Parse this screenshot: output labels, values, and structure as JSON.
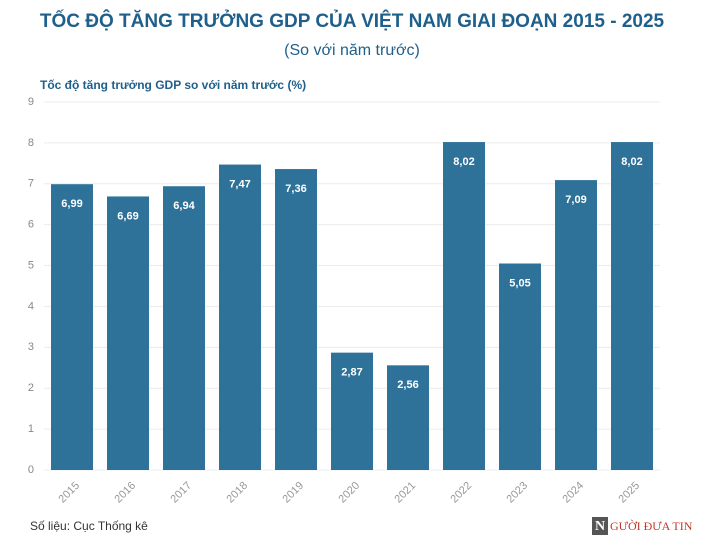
{
  "chart_data": {
    "type": "bar",
    "title": "TỐC ĐỘ TĂNG TRƯỞNG GDP CỦA VIỆT NAM GIAI ĐOẠN 2015 - 2025",
    "subtitle": "(So với năm trước)",
    "y_label": "Tốc độ tăng trưởng GDP so với năm trước (%)",
    "source": "Số liệu: Cục Thống kê",
    "logo_initial": "N",
    "logo_text": "GƯỜI ĐƯA TIN",
    "categories": [
      "2015",
      "2016",
      "2017",
      "2018",
      "2019",
      "2020",
      "2021",
      "2022",
      "2023",
      "2024",
      "2025"
    ],
    "values": [
      6.99,
      6.69,
      6.94,
      7.47,
      7.36,
      2.87,
      2.56,
      8.02,
      5.05,
      7.09,
      8.02
    ],
    "value_labels": [
      "6,99",
      "6,69",
      "6,94",
      "7,47",
      "7,36",
      "2,87",
      "2,56",
      "8,02",
      "5,05",
      "7,09",
      "8,02"
    ],
    "color": "#2e7199",
    "ylim": [
      0,
      9
    ],
    "yticks": [
      0,
      1,
      2,
      3,
      4,
      5,
      6,
      7,
      8,
      9
    ],
    "grid": true
  }
}
